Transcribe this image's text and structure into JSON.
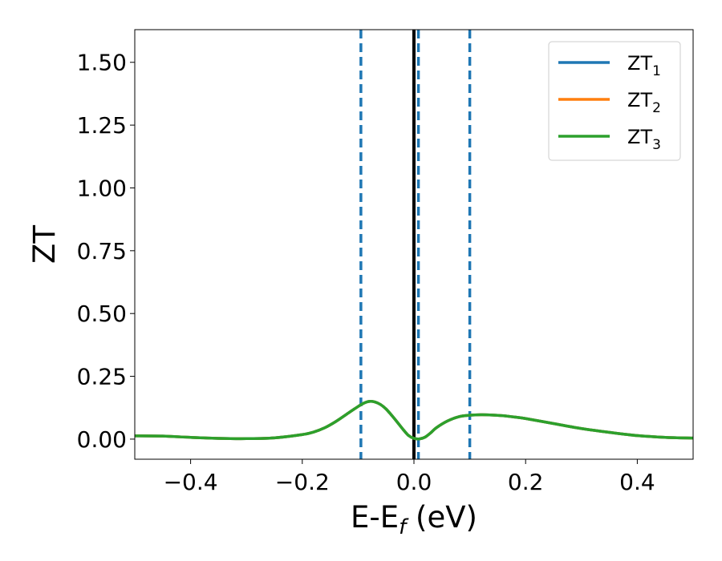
{
  "chart_data": {
    "type": "line",
    "xlabel": {
      "main": "E-E",
      "sub": "f",
      "tail": " (eV)"
    },
    "ylabel": "ZT",
    "xlim": [
      -0.5,
      0.5
    ],
    "ylim": [
      -0.08,
      1.63
    ],
    "x_ticks": [
      -0.4,
      -0.2,
      0.0,
      0.2,
      0.4
    ],
    "x_tick_labels": [
      "−0.4",
      "−0.2",
      "0.0",
      "0.2",
      "0.4"
    ],
    "y_ticks": [
      0.0,
      0.25,
      0.5,
      0.75,
      1.0,
      1.25,
      1.5
    ],
    "y_tick_labels": [
      "0.00",
      "0.25",
      "0.50",
      "0.75",
      "1.00",
      "1.25",
      "1.50"
    ],
    "grid": false,
    "legend_position": "top-right",
    "series": [
      {
        "name": "ZT",
        "sub": "1",
        "color": "#1f77b4",
        "x": [
          -0.5,
          -0.45,
          -0.4,
          -0.35,
          -0.3,
          -0.25,
          -0.2,
          -0.18,
          -0.16,
          -0.14,
          -0.12,
          -0.1,
          -0.09,
          -0.08,
          -0.07,
          -0.06,
          -0.05,
          -0.04,
          -0.03,
          -0.02,
          -0.01,
          0.0,
          0.01,
          0.02,
          0.03,
          0.04,
          0.06,
          0.08,
          0.1,
          0.12,
          0.14,
          0.16,
          0.18,
          0.2,
          0.25,
          0.3,
          0.35,
          0.4,
          0.45,
          0.5
        ],
        "y": [
          0.013,
          0.012,
          0.007,
          0.003,
          0.002,
          0.005,
          0.018,
          0.028,
          0.045,
          0.07,
          0.1,
          0.13,
          0.143,
          0.15,
          0.148,
          0.138,
          0.12,
          0.095,
          0.068,
          0.04,
          0.015,
          0.003,
          0.001,
          0.008,
          0.025,
          0.045,
          0.072,
          0.089,
          0.095,
          0.097,
          0.096,
          0.093,
          0.088,
          0.082,
          0.062,
          0.042,
          0.027,
          0.014,
          0.007,
          0.004
        ]
      },
      {
        "name": "ZT",
        "sub": "2",
        "color": "#ff7f0e",
        "x": [
          -0.5,
          -0.45,
          -0.4,
          -0.35,
          -0.3,
          -0.25,
          -0.2,
          -0.18,
          -0.16,
          -0.14,
          -0.12,
          -0.1,
          -0.09,
          -0.08,
          -0.07,
          -0.06,
          -0.05,
          -0.04,
          -0.03,
          -0.02,
          -0.01,
          0.0,
          0.01,
          0.02,
          0.03,
          0.04,
          0.06,
          0.08,
          0.1,
          0.12,
          0.14,
          0.16,
          0.18,
          0.2,
          0.25,
          0.3,
          0.35,
          0.4,
          0.45,
          0.5
        ],
        "y": [
          0.013,
          0.012,
          0.007,
          0.003,
          0.002,
          0.005,
          0.018,
          0.028,
          0.045,
          0.07,
          0.1,
          0.13,
          0.143,
          0.15,
          0.148,
          0.138,
          0.12,
          0.095,
          0.068,
          0.04,
          0.015,
          0.003,
          0.001,
          0.008,
          0.025,
          0.045,
          0.072,
          0.089,
          0.095,
          0.097,
          0.096,
          0.093,
          0.088,
          0.082,
          0.062,
          0.042,
          0.027,
          0.014,
          0.007,
          0.004
        ]
      },
      {
        "name": "ZT",
        "sub": "3",
        "color": "#2ca02c",
        "x": [
          -0.5,
          -0.45,
          -0.4,
          -0.35,
          -0.3,
          -0.25,
          -0.2,
          -0.18,
          -0.16,
          -0.14,
          -0.12,
          -0.1,
          -0.09,
          -0.08,
          -0.07,
          -0.06,
          -0.05,
          -0.04,
          -0.03,
          -0.02,
          -0.01,
          0.0,
          0.01,
          0.02,
          0.03,
          0.04,
          0.06,
          0.08,
          0.1,
          0.12,
          0.14,
          0.16,
          0.18,
          0.2,
          0.25,
          0.3,
          0.35,
          0.4,
          0.45,
          0.5
        ],
        "y": [
          0.013,
          0.012,
          0.007,
          0.003,
          0.002,
          0.005,
          0.018,
          0.028,
          0.045,
          0.07,
          0.1,
          0.13,
          0.143,
          0.15,
          0.148,
          0.138,
          0.12,
          0.095,
          0.068,
          0.04,
          0.015,
          0.003,
          0.001,
          0.008,
          0.025,
          0.045,
          0.072,
          0.089,
          0.095,
          0.097,
          0.096,
          0.093,
          0.088,
          0.082,
          0.062,
          0.042,
          0.027,
          0.014,
          0.007,
          0.004
        ]
      }
    ],
    "vlines": [
      {
        "x": -0.095,
        "style": "dashed",
        "color": "#1f77b4"
      },
      {
        "x": 0.0,
        "style": "solid",
        "color": "#000000"
      },
      {
        "x": 0.008,
        "style": "dashed",
        "color": "#1f77b4"
      },
      {
        "x": 0.1,
        "style": "dashed",
        "color": "#1f77b4"
      }
    ]
  }
}
